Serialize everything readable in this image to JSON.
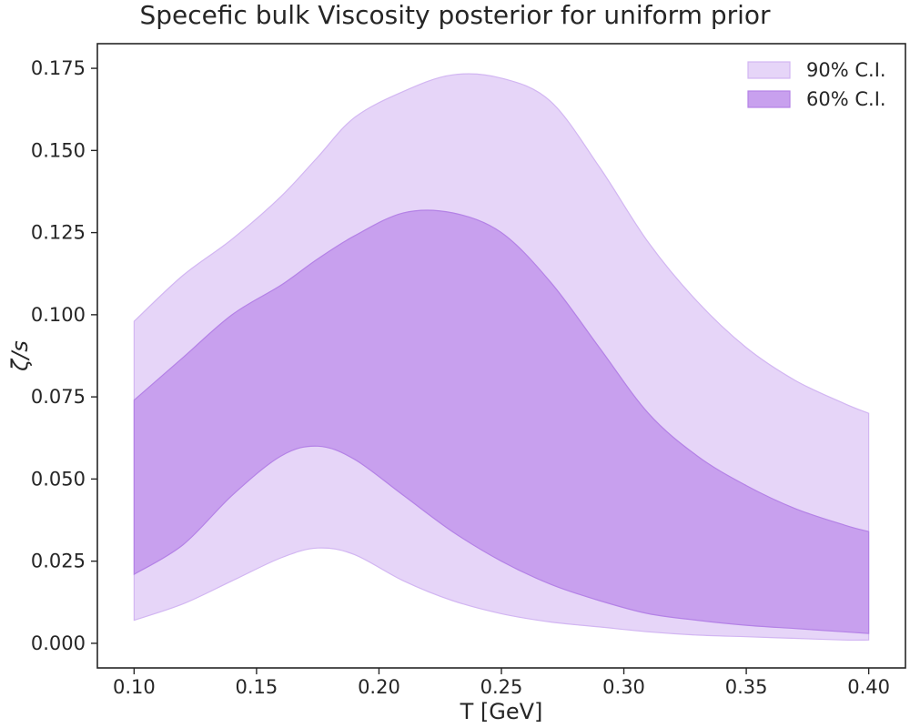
{
  "chart_data": {
    "type": "area",
    "title": "Specefic bulk Viscosity posterior for uniform prior",
    "xlabel": "T [GeV]",
    "ylabel": "ζ/s",
    "xlim": [
      0.085,
      0.415
    ],
    "ylim": [
      -0.0075,
      0.1825
    ],
    "x_ticks": [
      "0.10",
      "0.15",
      "0.20",
      "0.25",
      "0.30",
      "0.35",
      "0.40"
    ],
    "y_ticks": [
      "0.000",
      "0.025",
      "0.050",
      "0.075",
      "0.100",
      "0.125",
      "0.150",
      "0.175"
    ],
    "grid": false,
    "legend_position": "top-right",
    "x": [
      0.1,
      0.12,
      0.14,
      0.16,
      0.175,
      0.19,
      0.21,
      0.23,
      0.25,
      0.27,
      0.29,
      0.31,
      0.33,
      0.35,
      0.37,
      0.39,
      0.4
    ],
    "series": [
      {
        "name": "90% C.I.",
        "color": "#e6d5f8",
        "edge_color": "#d2b6f2",
        "lower": [
          0.007,
          0.012,
          0.019,
          0.026,
          0.029,
          0.027,
          0.019,
          0.013,
          0.009,
          0.0065,
          0.005,
          0.0035,
          0.0025,
          0.002,
          0.0015,
          0.001,
          0.001
        ],
        "upper": [
          0.098,
          0.112,
          0.123,
          0.136,
          0.148,
          0.16,
          0.168,
          0.173,
          0.172,
          0.165,
          0.145,
          0.122,
          0.104,
          0.09,
          0.08,
          0.073,
          0.07
        ]
      },
      {
        "name": "60% C.I.",
        "color": "#c8a0ee",
        "edge_color": "#b482e6",
        "lower": [
          0.021,
          0.03,
          0.045,
          0.057,
          0.06,
          0.056,
          0.045,
          0.034,
          0.025,
          0.018,
          0.013,
          0.009,
          0.007,
          0.0055,
          0.0045,
          0.0035,
          0.003
        ],
        "upper": [
          0.074,
          0.087,
          0.1,
          0.109,
          0.117,
          0.124,
          0.131,
          0.131,
          0.125,
          0.11,
          0.09,
          0.07,
          0.057,
          0.048,
          0.041,
          0.036,
          0.034
        ]
      }
    ]
  }
}
